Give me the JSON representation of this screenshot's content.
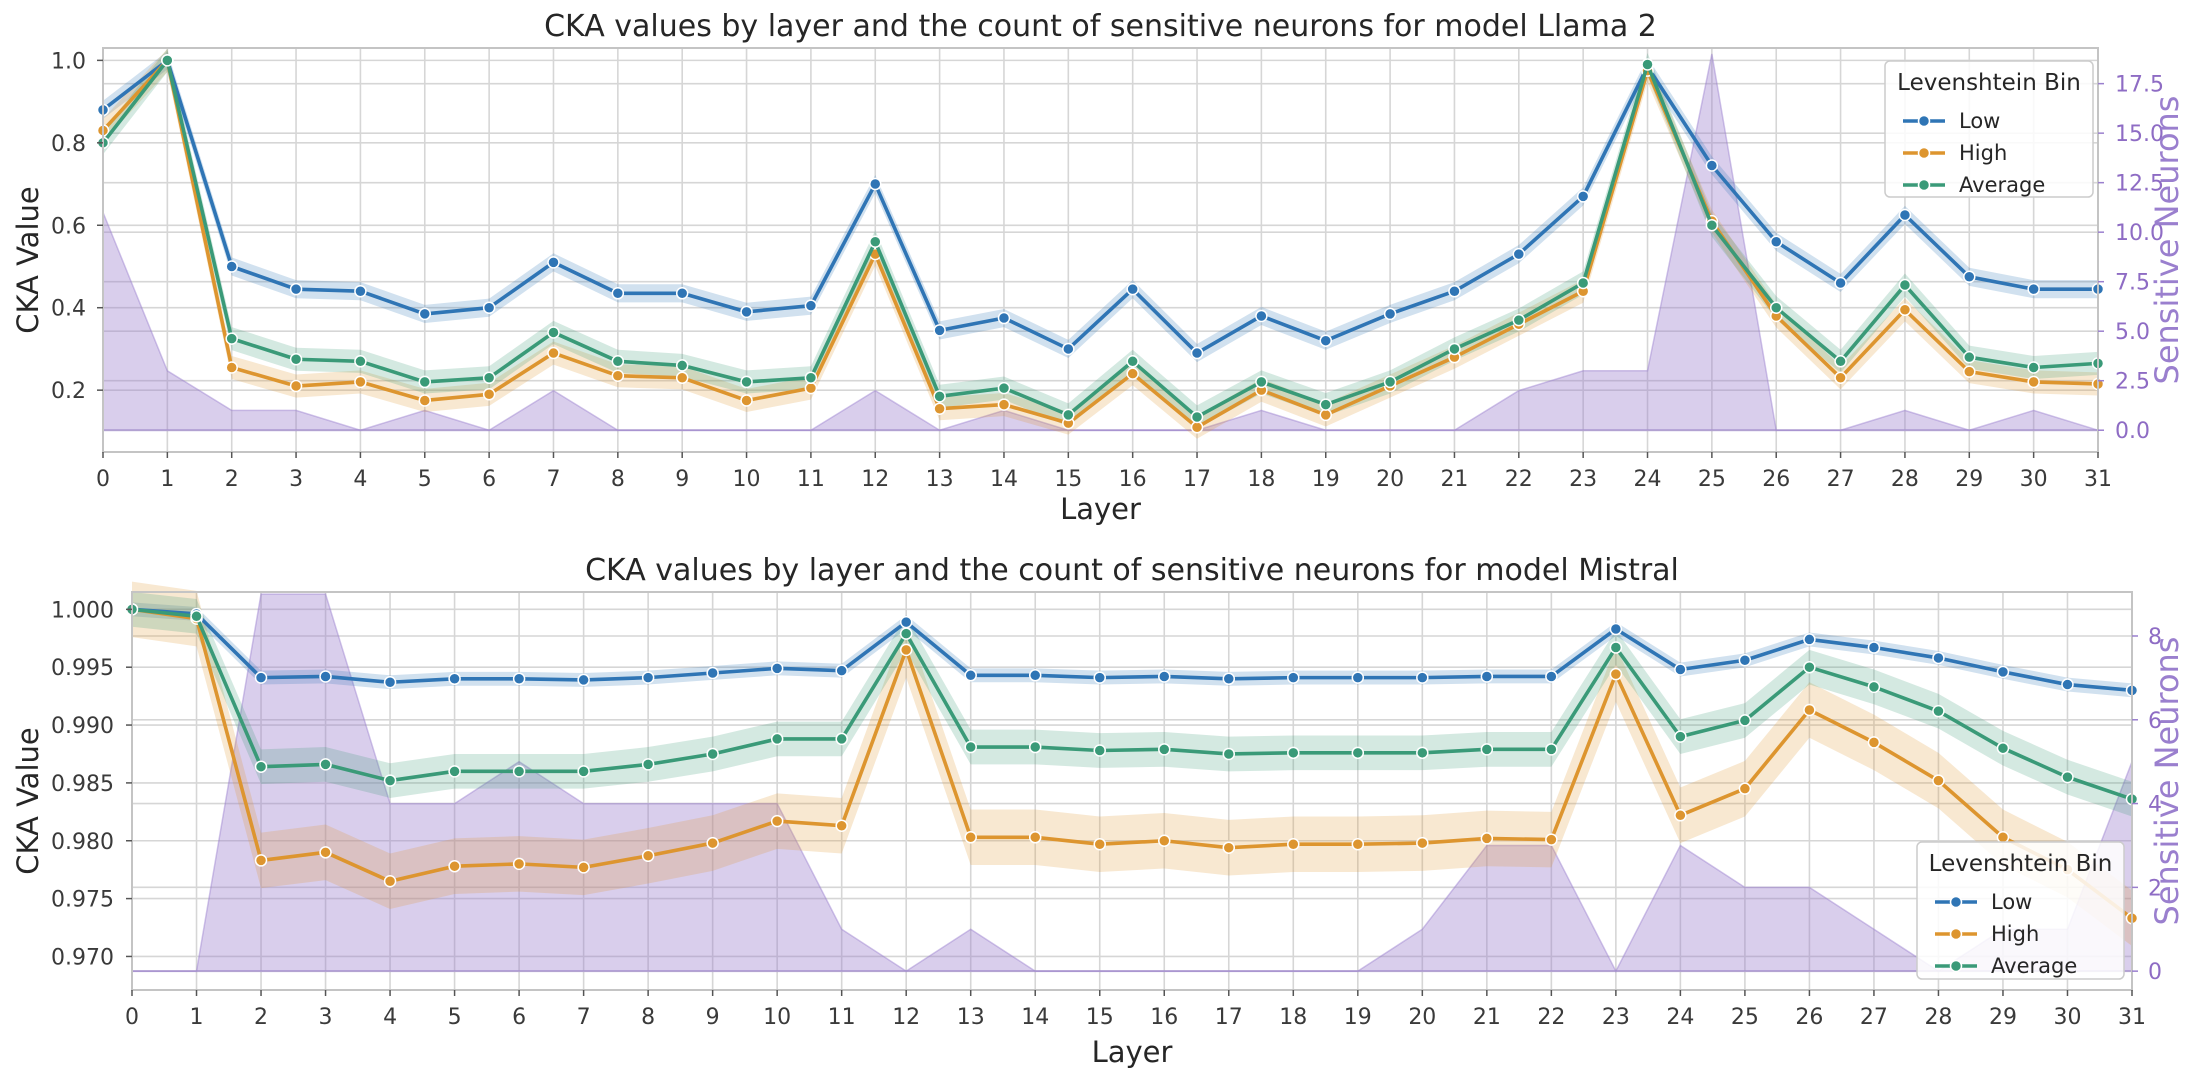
{
  "colors": {
    "low": "#2f75b5",
    "high": "#dd952f",
    "average": "#3a9a78",
    "neurons": "#9a7fce",
    "grid": "#d6d6d6",
    "frame": "#c4c4c4"
  },
  "chart_data": [
    {
      "type": "line",
      "title": "CKA values by layer and the count of sensitive neurons for model Llama 2",
      "xlabel": "Layer",
      "ylabel": "CKA Value",
      "y2label": "Sensitive Neurons",
      "x": [
        0,
        1,
        2,
        3,
        4,
        5,
        6,
        7,
        8,
        9,
        10,
        11,
        12,
        13,
        14,
        15,
        16,
        17,
        18,
        19,
        20,
        21,
        22,
        23,
        24,
        25,
        26,
        27,
        28,
        29,
        30,
        31
      ],
      "xlim": [
        0,
        31
      ],
      "ylim": [
        0.05,
        1.03
      ],
      "yticks": [
        0.2,
        0.4,
        0.6,
        0.8,
        1.0
      ],
      "ytick_labels": [
        "0.2",
        "0.4",
        "0.6",
        "0.8",
        "1.0"
      ],
      "y2lim": [
        -1.1,
        19.3
      ],
      "y2ticks": [
        0,
        2.5,
        5,
        7.5,
        10,
        12.5,
        15,
        17.5
      ],
      "y2tick_labels": [
        "0.0",
        "2.5",
        "5.0",
        "7.5",
        "10.0",
        "12.5",
        "15.0",
        "17.5"
      ],
      "legend": {
        "title": "Levenshtein Bin",
        "position": "top-right"
      },
      "series": [
        {
          "name": "Low",
          "key": "low",
          "values": [
            0.88,
            1.0,
            0.5,
            0.445,
            0.44,
            0.385,
            0.4,
            0.51,
            0.435,
            0.435,
            0.39,
            0.405,
            0.7,
            0.345,
            0.375,
            0.3,
            0.445,
            0.29,
            0.38,
            0.32,
            0.385,
            0.44,
            0.53,
            0.67,
            0.985,
            0.745,
            0.56,
            0.46,
            0.625,
            0.475,
            0.445,
            0.445
          ],
          "band": 0.022
        },
        {
          "name": "High",
          "key": "high",
          "values": [
            0.83,
            1.0,
            0.255,
            0.21,
            0.22,
            0.175,
            0.19,
            0.29,
            0.235,
            0.23,
            0.175,
            0.205,
            0.53,
            0.155,
            0.165,
            0.12,
            0.24,
            0.11,
            0.2,
            0.14,
            0.21,
            0.28,
            0.36,
            0.44,
            0.975,
            0.61,
            0.38,
            0.23,
            0.395,
            0.245,
            0.22,
            0.215
          ],
          "band": 0.028
        },
        {
          "name": "Average",
          "key": "average",
          "values": [
            0.8,
            1.0,
            0.325,
            0.275,
            0.27,
            0.22,
            0.23,
            0.34,
            0.27,
            0.26,
            0.22,
            0.23,
            0.56,
            0.185,
            0.205,
            0.14,
            0.27,
            0.135,
            0.22,
            0.165,
            0.22,
            0.3,
            0.37,
            0.46,
            0.99,
            0.6,
            0.4,
            0.27,
            0.455,
            0.28,
            0.255,
            0.265
          ],
          "band": 0.028
        }
      ],
      "neurons": [
        11,
        3,
        1,
        1,
        0,
        1,
        0,
        2,
        0,
        0,
        0,
        0,
        2,
        0,
        1,
        0,
        0,
        0,
        1,
        0,
        0,
        0,
        2,
        3,
        3,
        19,
        0,
        0,
        1,
        0,
        1,
        0
      ]
    },
    {
      "type": "line",
      "title": "CKA values by layer and the count of sensitive neurons for model Mistral",
      "xlabel": "Layer",
      "ylabel": "CKA Value",
      "y2label": "Sensitive Neurons",
      "x": [
        0,
        1,
        2,
        3,
        4,
        5,
        6,
        7,
        8,
        9,
        10,
        11,
        12,
        13,
        14,
        15,
        16,
        17,
        18,
        19,
        20,
        21,
        22,
        23,
        24,
        25,
        26,
        27,
        28,
        29,
        30,
        31
      ],
      "xlim": [
        0,
        31
      ],
      "ylim": [
        0.9671,
        1.0015
      ],
      "yticks": [
        0.97,
        0.975,
        0.98,
        0.985,
        0.99,
        0.995,
        1.0
      ],
      "ytick_labels": [
        "0.970",
        "0.975",
        "0.980",
        "0.985",
        "0.990",
        "0.995",
        "1.000"
      ],
      "y2lim": [
        -0.45,
        9.05
      ],
      "y2ticks": [
        0,
        2,
        4,
        6,
        8
      ],
      "y2tick_labels": [
        "0",
        "2",
        "4",
        "6",
        "8"
      ],
      "legend": {
        "title": "Levenshtein Bin",
        "position": "bottom-right"
      },
      "series": [
        {
          "name": "Low",
          "key": "low",
          "values": [
            1.0,
            0.9996,
            0.9941,
            0.9942,
            0.9937,
            0.994,
            0.994,
            0.9939,
            0.9941,
            0.9945,
            0.9949,
            0.9947,
            0.9989,
            0.9943,
            0.9943,
            0.9941,
            0.9942,
            0.994,
            0.9941,
            0.9941,
            0.9941,
            0.9942,
            0.9942,
            0.9983,
            0.9948,
            0.9956,
            0.9974,
            0.9967,
            0.9958,
            0.9946,
            0.9935,
            0.993
          ],
          "band": 0.0006
        },
        {
          "name": "High",
          "key": "high",
          "values": [
            1.0,
            0.9992,
            0.9783,
            0.979,
            0.9765,
            0.9778,
            0.978,
            0.9777,
            0.9787,
            0.9798,
            0.9817,
            0.9813,
            0.9965,
            0.9803,
            0.9803,
            0.9797,
            0.98,
            0.9794,
            0.9797,
            0.9797,
            0.9798,
            0.9802,
            0.9801,
            0.9944,
            0.9822,
            0.9845,
            0.9913,
            0.9885,
            0.9852,
            0.9803,
            0.9775,
            0.9733
          ],
          "band": 0.0024
        },
        {
          "name": "Average",
          "key": "average",
          "values": [
            1.0,
            0.9994,
            0.9864,
            0.9866,
            0.9852,
            0.986,
            0.986,
            0.986,
            0.9866,
            0.9875,
            0.9888,
            0.9888,
            0.9979,
            0.9881,
            0.9881,
            0.9878,
            0.9879,
            0.9875,
            0.9876,
            0.9876,
            0.9876,
            0.9879,
            0.9879,
            0.9967,
            0.989,
            0.9904,
            0.995,
            0.9933,
            0.9912,
            0.988,
            0.9855,
            0.9836
          ],
          "band": 0.0015
        }
      ],
      "neurons": [
        0,
        0,
        9,
        9,
        4,
        4,
        5,
        4,
        4,
        4,
        4,
        1,
        0,
        1,
        0,
        0,
        0,
        0,
        0,
        0,
        1,
        3,
        3,
        0,
        3,
        2,
        2,
        1,
        0,
        1,
        1,
        5
      ]
    }
  ]
}
